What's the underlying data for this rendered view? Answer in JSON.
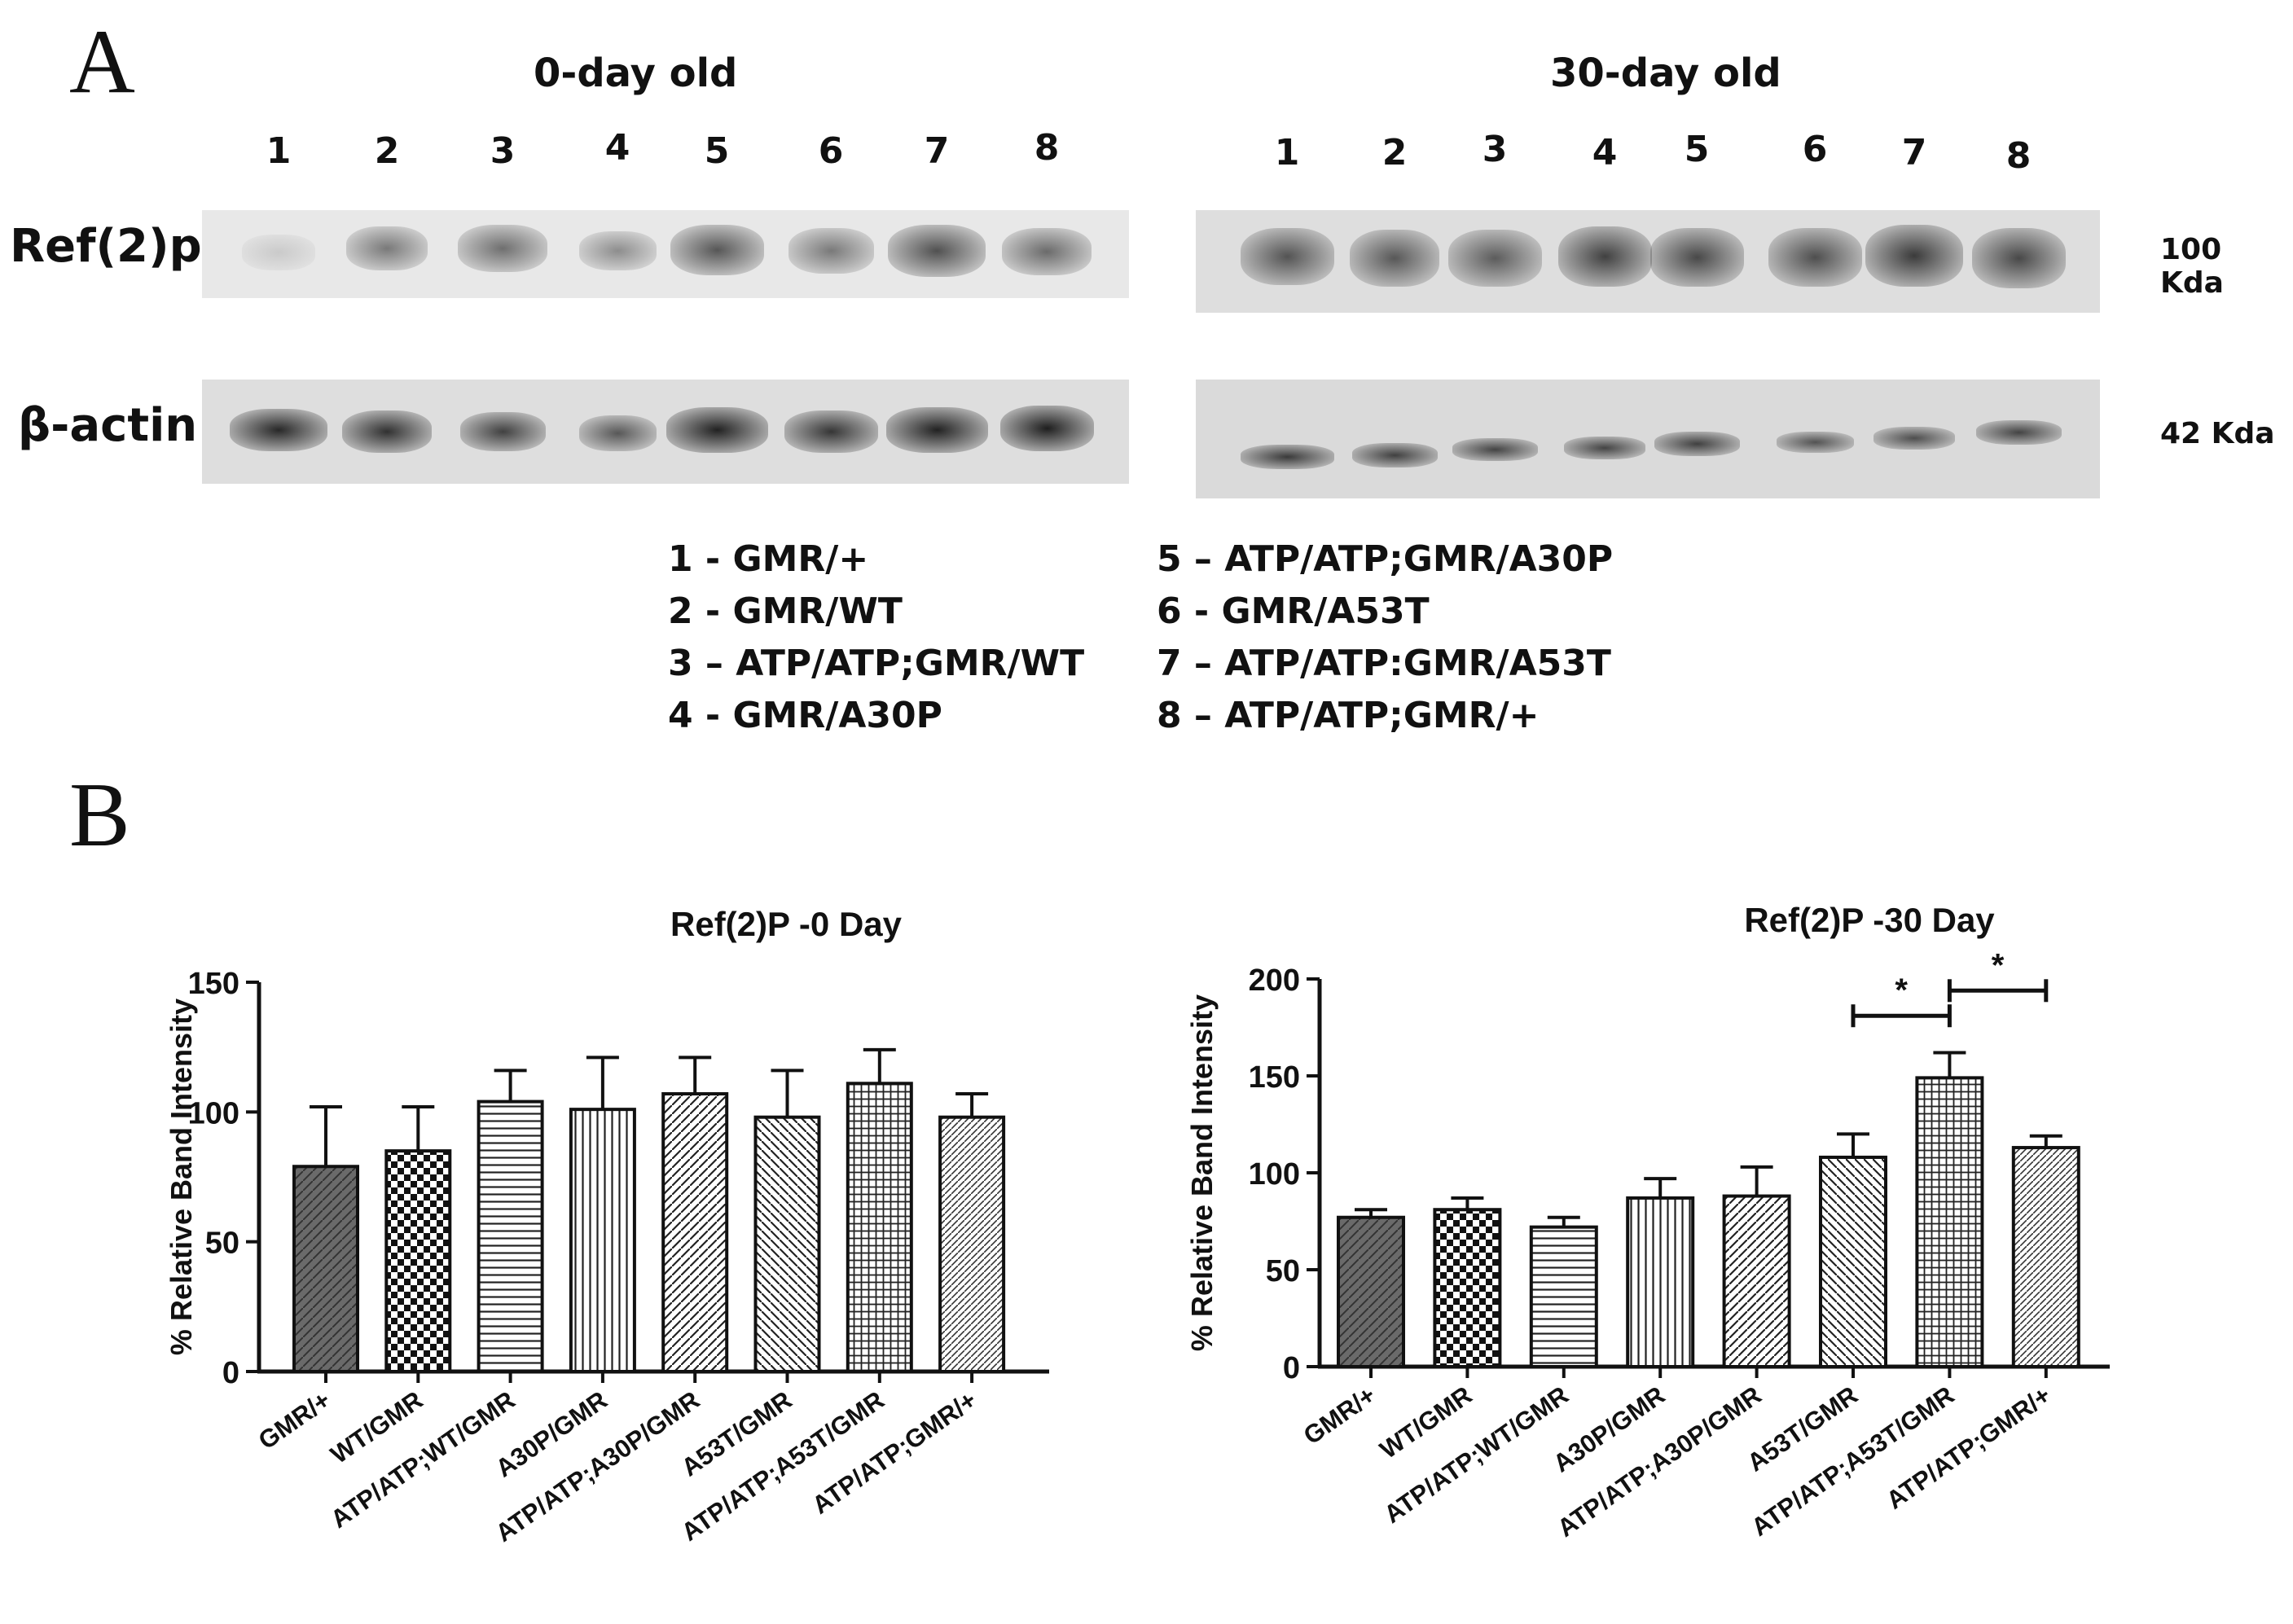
{
  "panel_a": {
    "letter": "A",
    "left_title": "0-day old",
    "right_title": "30-day old",
    "lanes": [
      "1",
      "2",
      "3",
      "4",
      "5",
      "6",
      "7",
      "8"
    ],
    "row1_label": "Ref(2)p",
    "row2_label": "β-actin",
    "row1_kda": "100 Kda",
    "row2_kda": "42 Kda",
    "legend_left": [
      "1 - GMR/+",
      "2 - GMR/WT",
      "3 – ATP/ATP;GMR/WT",
      "4 - GMR/A30P"
    ],
    "legend_right": [
      "5 – ATP/ATP;GMR/A30P",
      "6 - GMR/A53T",
      "7 – ATP/ATP:GMR/A53T",
      "8 – ATP/ATP;GMR/+"
    ]
  },
  "panel_b": {
    "letter": "B"
  },
  "chart_data": [
    {
      "type": "bar",
      "title": "Ref(2)P -0 Day",
      "ylabel": "% Relative Band Intensity",
      "xlabel": "",
      "ylim": [
        0,
        150
      ],
      "yticks": [
        0,
        50,
        100,
        150
      ],
      "categories": [
        "GMR/+",
        "WT/GMR",
        "ATP/ATP;WT/GMR",
        "A30P/GMR",
        "ATP/ATP;A30P/GMR",
        "A53T/GMR",
        "ATP/ATP;A53T/GMR",
        "ATP/ATP;GMR/+"
      ],
      "values": [
        79,
        85,
        104,
        101,
        107,
        98,
        111,
        98
      ],
      "errors": [
        23,
        17,
        12,
        20,
        14,
        18,
        13,
        9
      ],
      "significance": []
    },
    {
      "type": "bar",
      "title": "Ref(2)P -30 Day",
      "ylabel": "% Relative Band Intensity",
      "xlabel": "",
      "ylim": [
        0,
        200
      ],
      "yticks": [
        0,
        50,
        100,
        150,
        200
      ],
      "categories": [
        "GMR/+",
        "WT/GMR",
        "ATP/ATP;WT/GMR",
        "A30P/GMR",
        "ATP/ATP;A30P/GMR",
        "A53T/GMR",
        "ATP/ATP;A53T/GMR",
        "ATP/ATP;GMR/+"
      ],
      "values": [
        77,
        81,
        72,
        87,
        88,
        108,
        149,
        113
      ],
      "errors": [
        4,
        6,
        5,
        10,
        15,
        12,
        13,
        6
      ],
      "significance": [
        {
          "from": 5,
          "to": 6,
          "y": 181,
          "label": "*"
        },
        {
          "from": 6,
          "to": 7,
          "y": 194,
          "label": "*"
        }
      ]
    }
  ]
}
